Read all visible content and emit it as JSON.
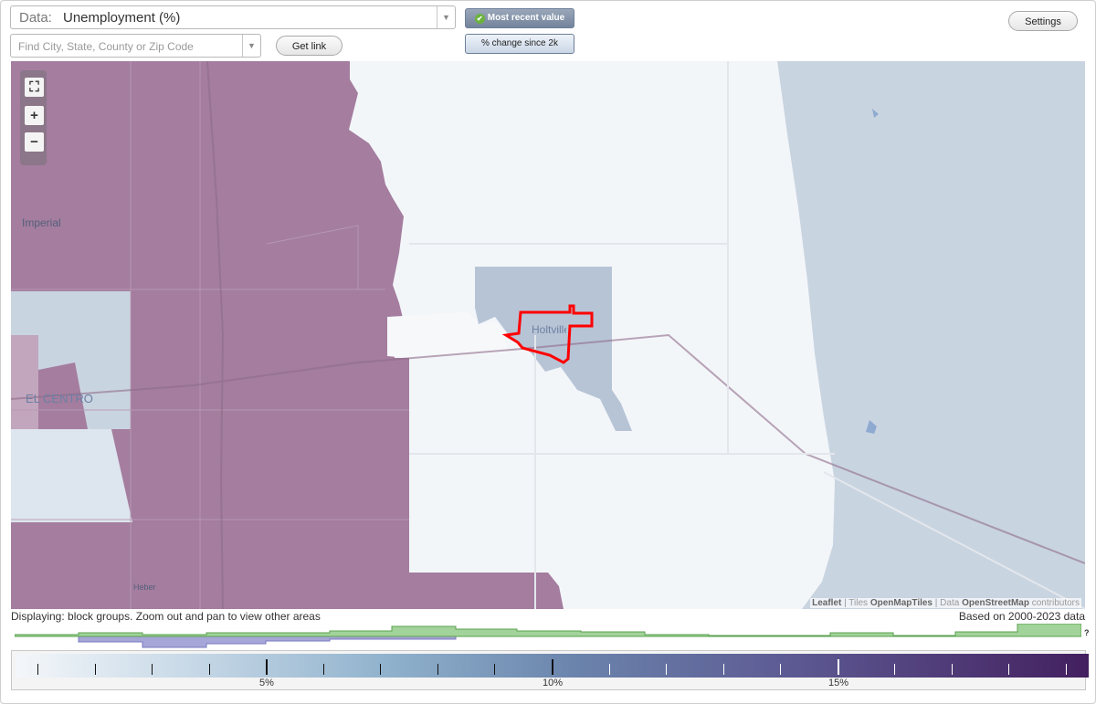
{
  "data_select": {
    "prefix": "Data:",
    "value": "Unemployment (%)"
  },
  "search": {
    "placeholder": "Find City, State, County or Zip Code"
  },
  "buttons": {
    "get_link": "Get link",
    "settings": "Settings"
  },
  "toggles": {
    "most_recent": "Most recent value",
    "pct_change": "% change since 2k"
  },
  "map": {
    "place_labels": {
      "imperial": "Imperial",
      "el_centro": "EL CENTRO",
      "holtville": "Holtville",
      "heber": "Heber"
    },
    "zoom": {
      "fullscreen": "⛶",
      "zoom_in": "+",
      "zoom_out": "−"
    },
    "attribution": {
      "leaflet": "Leaflet",
      "sep1": " | Tiles ",
      "tiles": "OpenMapTiles",
      "sep2": " | Data ",
      "data": "OpenStreetMap",
      "suffix": " contributors"
    }
  },
  "status": {
    "displaying": "Displaying: block groups. Zoom out and pan to view other areas",
    "based_on": "Based on 2000-2023 data"
  },
  "histogram": {
    "unknown_marker": "?"
  },
  "legend": {
    "labels": [
      "5%",
      "10%",
      "15%"
    ],
    "colors": {
      "low": "#f4f7fa",
      "mid": "#6b84ac",
      "high": "#43205f"
    }
  },
  "colors": {
    "high_unemployment": "#a47d9f",
    "low_unemployment": "#c9d4e1",
    "selected_outline": "#ff0000",
    "histogram_green": "#a2d39a",
    "histogram_purple": "#a6a6d8"
  }
}
